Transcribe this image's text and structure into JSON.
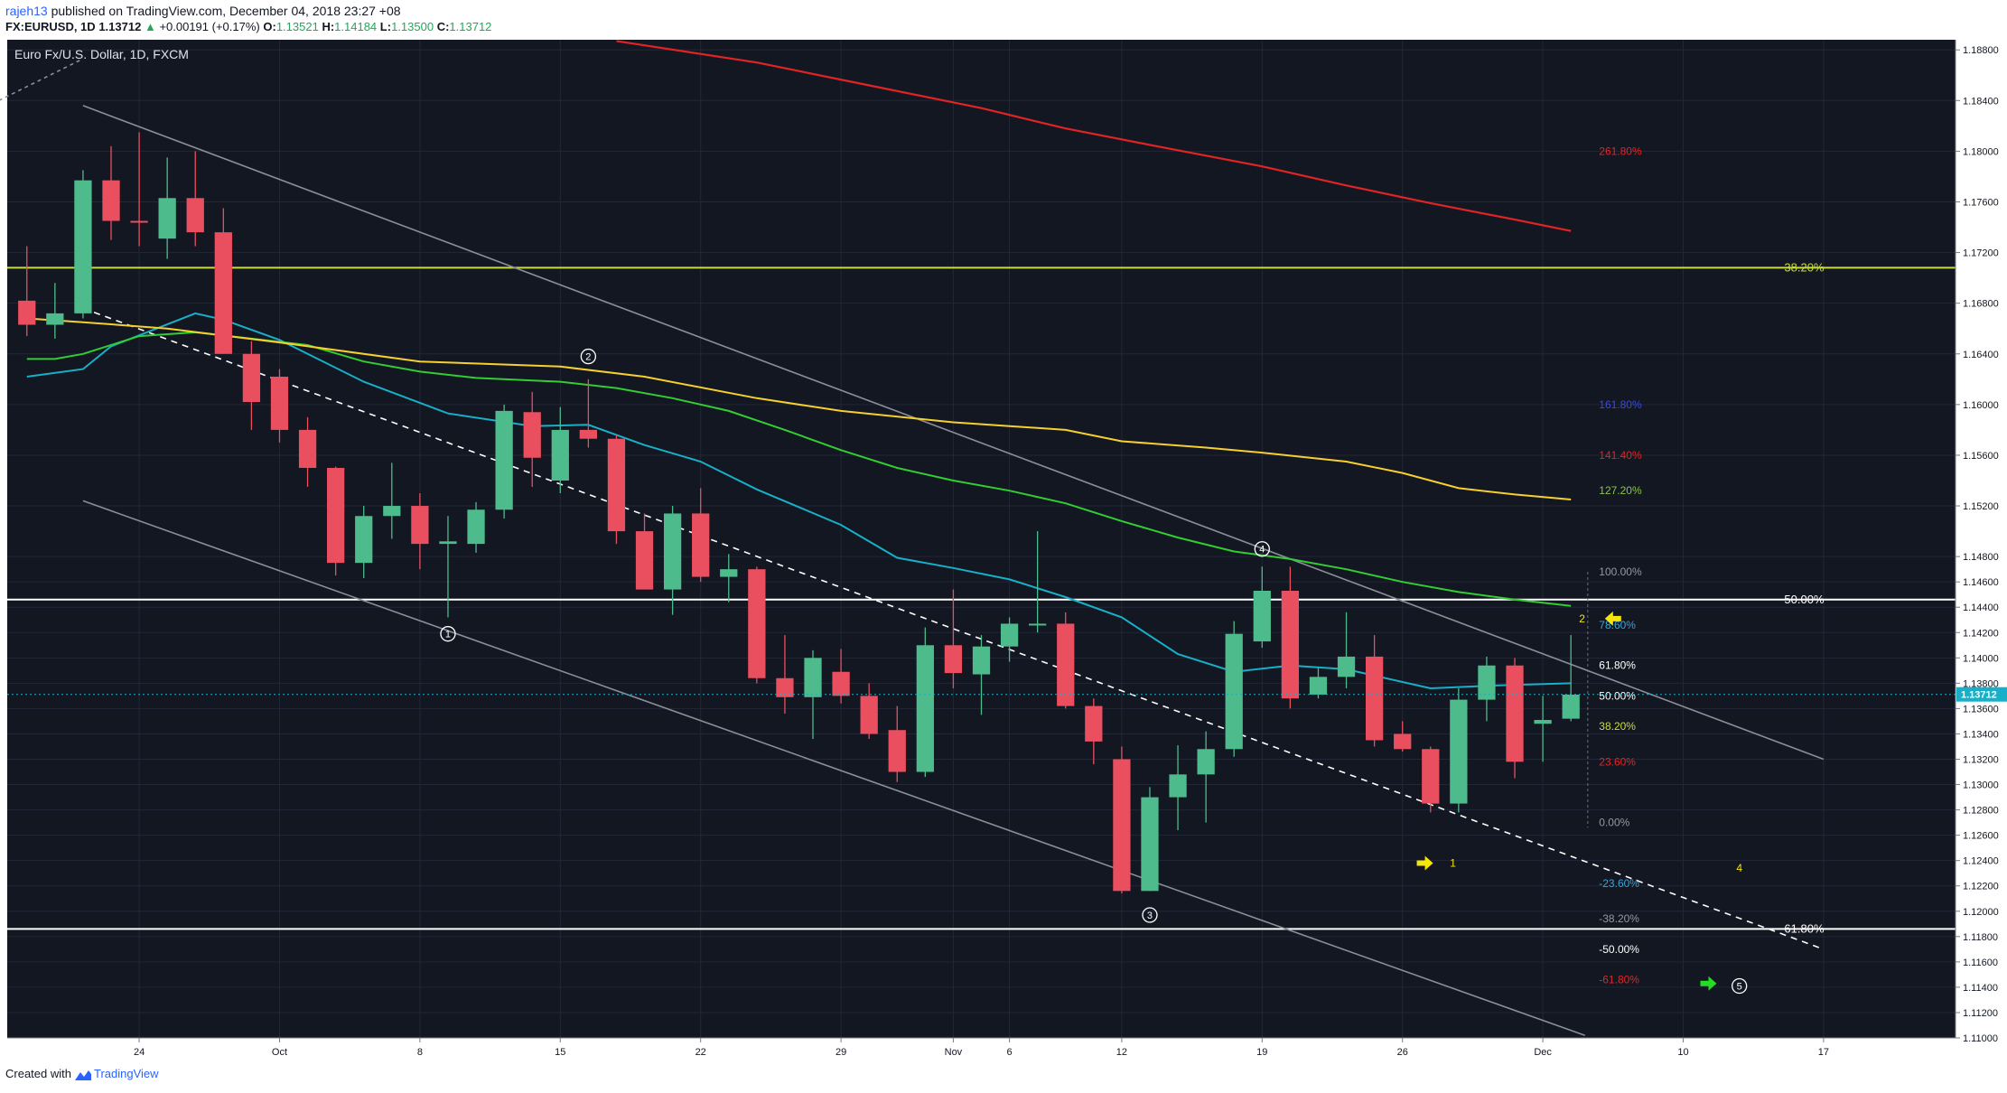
{
  "header": {
    "user": "rajeh13",
    "published_text": "published on TradingView.com, December 04, 2018 23:27 +08",
    "symbol": "FX:EURUSD, 1D",
    "last": "1.13712",
    "change_arrow": "▲",
    "change": "+0.00191 (+0.17%)",
    "o_label": "O:",
    "o_value": "1.13521",
    "h_label": "H:",
    "h_value": "1.14184",
    "l_label": "L:",
    "l_value": "1.13500",
    "c_label": "C:",
    "c_value": "1.13712"
  },
  "footer": {
    "created_with": "Created with",
    "brand": "TradingView"
  },
  "chart_data": {
    "type": "candlestick",
    "title": "Euro Fx/U.S. Dollar, 1D, FXCM",
    "ylim": [
      1.11,
      1.1888
    ],
    "xlim": [
      -4.7,
      64.7
    ],
    "y_ticks": [
      "1.11000",
      "1.11200",
      "1.11400",
      "1.11600",
      "1.11800",
      "1.12000",
      "1.12200",
      "1.12400",
      "1.12600",
      "1.12800",
      "1.13000",
      "1.13200",
      "1.13400",
      "1.13600",
      "1.13800",
      "1.14000",
      "1.14200",
      "1.14400",
      "1.14600",
      "1.14800",
      "1.15200",
      "1.15600",
      "1.16000",
      "1.16400",
      "1.16800",
      "1.17200",
      "1.17600",
      "1.18000",
      "1.18400",
      "1.18800"
    ],
    "x_ticks": [
      {
        "label": "24",
        "x": 0
      },
      {
        "label": "Oct",
        "x": 5
      },
      {
        "label": "8",
        "x": 10
      },
      {
        "label": "15",
        "x": 15
      },
      {
        "label": "22",
        "x": 20
      },
      {
        "label": "29",
        "x": 25
      },
      {
        "label": "Nov",
        "x": 29
      },
      {
        "label": "6",
        "x": 31
      },
      {
        "label": "12",
        "x": 35
      },
      {
        "label": "19",
        "x": 40
      },
      {
        "label": "26",
        "x": 45
      },
      {
        "label": "Dec",
        "x": 50
      },
      {
        "label": "10",
        "x": 55
      },
      {
        "label": "17",
        "x": 60
      }
    ],
    "last_price": "1.13712",
    "candles": [
      {
        "t": -4,
        "o": 1.1682,
        "h": 1.1725,
        "l": 1.1654,
        "c": 1.1663
      },
      {
        "t": -3,
        "o": 1.1663,
        "h": 1.1696,
        "l": 1.1652,
        "c": 1.1672
      },
      {
        "t": -2,
        "o": 1.1672,
        "h": 1.1785,
        "l": 1.1668,
        "c": 1.1777
      },
      {
        "t": -1,
        "o": 1.1777,
        "h": 1.1804,
        "l": 1.173,
        "c": 1.1745
      },
      {
        "t": 0,
        "o": 1.1745,
        "h": 1.1815,
        "l": 1.1725,
        "c": 1.1744
      },
      {
        "t": 1,
        "o": 1.1731,
        "h": 1.1795,
        "l": 1.1715,
        "c": 1.1763
      },
      {
        "t": 2,
        "o": 1.1763,
        "h": 1.18,
        "l": 1.1725,
        "c": 1.1736
      },
      {
        "t": 3,
        "o": 1.1736,
        "h": 1.1755,
        "l": 1.164,
        "c": 1.164
      },
      {
        "t": 4,
        "o": 1.164,
        "h": 1.165,
        "l": 1.158,
        "c": 1.1602
      },
      {
        "t": 5,
        "o": 1.1622,
        "h": 1.1628,
        "l": 1.157,
        "c": 1.158
      },
      {
        "t": 6,
        "o": 1.158,
        "h": 1.159,
        "l": 1.1535,
        "c": 1.155
      },
      {
        "t": 7,
        "o": 1.155,
        "h": 1.1551,
        "l": 1.1465,
        "c": 1.1475
      },
      {
        "t": 8,
        "o": 1.1475,
        "h": 1.152,
        "l": 1.1463,
        "c": 1.1512
      },
      {
        "t": 9,
        "o": 1.1512,
        "h": 1.1554,
        "l": 1.1494,
        "c": 1.152
      },
      {
        "t": 10,
        "o": 1.152,
        "h": 1.153,
        "l": 1.147,
        "c": 1.149
      },
      {
        "t": 11,
        "o": 1.149,
        "h": 1.1512,
        "l": 1.1432,
        "c": 1.1492
      },
      {
        "t": 12,
        "o": 1.149,
        "h": 1.1523,
        "l": 1.1483,
        "c": 1.1517
      },
      {
        "t": 13,
        "o": 1.1517,
        "h": 1.16,
        "l": 1.151,
        "c": 1.1595
      },
      {
        "t": 14,
        "o": 1.1594,
        "h": 1.161,
        "l": 1.1535,
        "c": 1.1558
      },
      {
        "t": 15,
        "o": 1.154,
        "h": 1.1598,
        "l": 1.153,
        "c": 1.158
      },
      {
        "t": 16,
        "o": 1.158,
        "h": 1.162,
        "l": 1.1566,
        "c": 1.1573
      },
      {
        "t": 17,
        "o": 1.1573,
        "h": 1.1576,
        "l": 1.149,
        "c": 1.15
      },
      {
        "t": 18,
        "o": 1.15,
        "h": 1.1514,
        "l": 1.1454,
        "c": 1.1454
      },
      {
        "t": 19,
        "o": 1.1454,
        "h": 1.152,
        "l": 1.1434,
        "c": 1.1514
      },
      {
        "t": 20,
        "o": 1.1514,
        "h": 1.1534,
        "l": 1.146,
        "c": 1.1464
      },
      {
        "t": 21,
        "o": 1.1464,
        "h": 1.1482,
        "l": 1.1444,
        "c": 1.147
      },
      {
        "t": 22,
        "o": 1.147,
        "h": 1.1472,
        "l": 1.138,
        "c": 1.1384
      },
      {
        "t": 23,
        "o": 1.1384,
        "h": 1.1418,
        "l": 1.1356,
        "c": 1.1369
      },
      {
        "t": 24,
        "o": 1.1369,
        "h": 1.1406,
        "l": 1.1336,
        "c": 1.14
      },
      {
        "t": 25,
        "o": 1.1389,
        "h": 1.1407,
        "l": 1.1364,
        "c": 1.137
      },
      {
        "t": 26,
        "o": 1.137,
        "h": 1.138,
        "l": 1.1336,
        "c": 1.134
      },
      {
        "t": 27,
        "o": 1.1343,
        "h": 1.1362,
        "l": 1.1302,
        "c": 1.131
      },
      {
        "t": 28,
        "o": 1.131,
        "h": 1.1424,
        "l": 1.1306,
        "c": 1.141
      },
      {
        "t": 29,
        "o": 1.141,
        "h": 1.1454,
        "l": 1.1376,
        "c": 1.1388
      },
      {
        "t": 30,
        "o": 1.1387,
        "h": 1.1418,
        "l": 1.1355,
        "c": 1.1409
      },
      {
        "t": 31,
        "o": 1.1409,
        "h": 1.1432,
        "l": 1.1397,
        "c": 1.1427
      },
      {
        "t": 32,
        "o": 1.1427,
        "h": 1.15,
        "l": 1.142,
        "c": 1.1427
      },
      {
        "t": 33,
        "o": 1.1427,
        "h": 1.1436,
        "l": 1.136,
        "c": 1.1362
      },
      {
        "t": 34,
        "o": 1.1362,
        "h": 1.1368,
        "l": 1.1316,
        "c": 1.1334
      },
      {
        "t": 35,
        "o": 1.132,
        "h": 1.133,
        "l": 1.1214,
        "c": 1.1216
      },
      {
        "t": 36,
        "o": 1.1216,
        "h": 1.1298,
        "l": 1.1216,
        "c": 1.129
      },
      {
        "t": 37,
        "o": 1.129,
        "h": 1.1331,
        "l": 1.1264,
        "c": 1.1308
      },
      {
        "t": 38,
        "o": 1.1308,
        "h": 1.1342,
        "l": 1.127,
        "c": 1.1328
      },
      {
        "t": 39,
        "o": 1.1328,
        "h": 1.1429,
        "l": 1.1322,
        "c": 1.1419
      },
      {
        "t": 40,
        "o": 1.1413,
        "h": 1.1472,
        "l": 1.1408,
        "c": 1.1453
      },
      {
        "t": 41,
        "o": 1.1453,
        "h": 1.1472,
        "l": 1.136,
        "c": 1.1368
      },
      {
        "t": 42,
        "o": 1.1371,
        "h": 1.1392,
        "l": 1.1368,
        "c": 1.1385
      },
      {
        "t": 43,
        "o": 1.1385,
        "h": 1.1436,
        "l": 1.1376,
        "c": 1.1401
      },
      {
        "t": 44,
        "o": 1.1401,
        "h": 1.1418,
        "l": 1.133,
        "c": 1.1335
      },
      {
        "t": 45,
        "o": 1.134,
        "h": 1.135,
        "l": 1.1326,
        "c": 1.1328
      },
      {
        "t": 46,
        "o": 1.1328,
        "h": 1.133,
        "l": 1.1278,
        "c": 1.1285
      },
      {
        "t": 47,
        "o": 1.1285,
        "h": 1.1376,
        "l": 1.1278,
        "c": 1.1367
      },
      {
        "t": 48,
        "o": 1.1367,
        "h": 1.1401,
        "l": 1.135,
        "c": 1.1394
      },
      {
        "t": 49,
        "o": 1.1394,
        "h": 1.14,
        "l": 1.1305,
        "c": 1.1318
      },
      {
        "t": 50,
        "o": 1.1348,
        "h": 1.137,
        "l": 1.1318,
        "c": 1.1351
      },
      {
        "t": 51,
        "o": 1.1352,
        "h": 1.1418,
        "l": 1.135,
        "c": 1.1371
      }
    ],
    "series": [
      {
        "name": "MA fast",
        "color": "#17b0c8",
        "points": [
          [
            -4,
            1.1622
          ],
          [
            -2,
            1.1628
          ],
          [
            -1,
            1.1646
          ],
          [
            2,
            1.1672
          ],
          [
            3,
            1.1667
          ],
          [
            5,
            1.1651
          ],
          [
            8,
            1.1618
          ],
          [
            11,
            1.1593
          ],
          [
            14,
            1.1583
          ],
          [
            16,
            1.1584
          ],
          [
            18,
            1.1568
          ],
          [
            20,
            1.1555
          ],
          [
            22,
            1.1533
          ],
          [
            25,
            1.1505
          ],
          [
            27,
            1.1479
          ],
          [
            29,
            1.1471
          ],
          [
            31,
            1.1462
          ],
          [
            33,
            1.1448
          ],
          [
            35,
            1.1432
          ],
          [
            37,
            1.1403
          ],
          [
            39,
            1.1389
          ],
          [
            41,
            1.1394
          ],
          [
            43,
            1.1391
          ],
          [
            46,
            1.1376
          ],
          [
            48,
            1.1378
          ],
          [
            51,
            1.138
          ]
        ]
      },
      {
        "name": "MA mid",
        "color": "#32cd32",
        "points": [
          [
            -4,
            1.1636
          ],
          [
            -3,
            1.1636
          ],
          [
            -2,
            1.164
          ],
          [
            0,
            1.1654
          ],
          [
            2,
            1.1657
          ],
          [
            4,
            1.1652
          ],
          [
            6,
            1.1647
          ],
          [
            8,
            1.1634
          ],
          [
            10,
            1.1626
          ],
          [
            12,
            1.1621
          ],
          [
            15,
            1.1618
          ],
          [
            17,
            1.1613
          ],
          [
            19,
            1.1605
          ],
          [
            21,
            1.1595
          ],
          [
            23,
            1.158
          ],
          [
            25,
            1.1564
          ],
          [
            27,
            1.155
          ],
          [
            29,
            1.154
          ],
          [
            31,
            1.1532
          ],
          [
            33,
            1.1522
          ],
          [
            35,
            1.1508
          ],
          [
            37,
            1.1495
          ],
          [
            39,
            1.1484
          ],
          [
            41,
            1.1478
          ],
          [
            43,
            1.147
          ],
          [
            45,
            1.146
          ],
          [
            47,
            1.1452
          ],
          [
            49,
            1.1446
          ],
          [
            51,
            1.1441
          ]
        ]
      },
      {
        "name": "MA slow",
        "color": "#f5d02e",
        "points": [
          [
            -4,
            1.1668
          ],
          [
            -2,
            1.1665
          ],
          [
            1,
            1.166
          ],
          [
            5,
            1.1649
          ],
          [
            10,
            1.1634
          ],
          [
            15,
            1.163
          ],
          [
            18,
            1.1622
          ],
          [
            22,
            1.1605
          ],
          [
            25,
            1.1595
          ],
          [
            29,
            1.1586
          ],
          [
            31,
            1.1583
          ],
          [
            33,
            1.158
          ],
          [
            35,
            1.1571
          ],
          [
            38,
            1.1566
          ],
          [
            40,
            1.1562
          ],
          [
            43,
            1.1555
          ],
          [
            45,
            1.1546
          ],
          [
            47,
            1.1534
          ],
          [
            49,
            1.1529
          ],
          [
            51,
            1.1525
          ]
        ]
      },
      {
        "name": "MA long",
        "color": "#e02424",
        "points": [
          [
            17,
            1.1887
          ],
          [
            22,
            1.187
          ],
          [
            26,
            1.1852
          ],
          [
            30,
            1.1834
          ],
          [
            33,
            1.1818
          ],
          [
            36,
            1.1805
          ],
          [
            40,
            1.1788
          ],
          [
            43,
            1.1773
          ],
          [
            46,
            1.1759
          ],
          [
            49,
            1.1746
          ],
          [
            51,
            1.1737
          ]
        ]
      }
    ],
    "horizontal_lines": [
      {
        "name": "upper-fib-line",
        "y": 1.1708,
        "color": "#c8dc3c",
        "label": "38.20%",
        "label_color": "#c8dc3c"
      },
      {
        "name": "mid-fib-line",
        "y": 1.1446,
        "color": "#ffffff",
        "label": "50.00%",
        "label_color": "#ffffff"
      },
      {
        "name": "lower-fib-line",
        "y": 1.1186,
        "color": "#ffffff",
        "label": "61.80%",
        "label_color": "#ffffff"
      }
    ],
    "trend_lines": [
      {
        "name": "channel-upper-line",
        "from": [
          -2,
          1.1836
        ],
        "to": [
          60,
          1.132
        ],
        "color": "#8a8e99",
        "dash": "none"
      },
      {
        "name": "channel-lower-line",
        "from": [
          -2,
          1.1524
        ],
        "to": [
          51.5,
          1.1102
        ],
        "color": "#8a8e99",
        "dash": "none"
      },
      {
        "name": "dashed-trend-line",
        "from": [
          -2,
          1.1676
        ],
        "to": [
          60,
          1.117
        ],
        "color": "#ffffff",
        "dash": "7,6"
      },
      {
        "name": "corner-trend-line",
        "from": [
          -5,
          1.184
        ],
        "to": [
          -2,
          1.1873
        ],
        "color": "#8a8e99",
        "dash": "4,4"
      }
    ],
    "fib_levels": [
      {
        "label": "261.80%",
        "y": 1.18,
        "color": "#e02424"
      },
      {
        "label": "161.80%",
        "y": 1.16,
        "color": "#3a4bd8"
      },
      {
        "label": "141.40%",
        "y": 1.156,
        "color": "#e02424"
      },
      {
        "label": "127.20%",
        "y": 1.1532,
        "color": "#8bc34a"
      },
      {
        "label": "100.00%",
        "y": 1.1468,
        "color": "#9598a1"
      },
      {
        "label": "78.60%",
        "y": 1.1426,
        "color": "#3aa3d8"
      },
      {
        "label": "61.80%",
        "y": 1.1394,
        "color": "#ffffff"
      },
      {
        "label": "50.00%",
        "y": 1.137,
        "color": "#ffffff"
      },
      {
        "label": "38.20%",
        "y": 1.1346,
        "color": "#c8dc3c"
      },
      {
        "label": "23.60%",
        "y": 1.1318,
        "color": "#e02424"
      },
      {
        "label": "0.00%",
        "y": 1.127,
        "color": "#9598a1"
      },
      {
        "label": "-23.60%",
        "y": 1.1222,
        "color": "#3aa3d8"
      },
      {
        "label": "-38.20%",
        "y": 1.1194,
        "color": "#9598a1"
      },
      {
        "label": "-50.00%",
        "y": 1.117,
        "color": "#ffffff"
      },
      {
        "label": "-61.80%",
        "y": 1.1146,
        "color": "#e02424"
      }
    ],
    "wave_labels": [
      {
        "label": "1",
        "x": 11,
        "y": 1.1419
      },
      {
        "label": "2",
        "x": 16,
        "y": 1.1638
      },
      {
        "label": "3",
        "x": 36,
        "y": 1.1197
      },
      {
        "label": "4",
        "x": 40,
        "y": 1.1486
      },
      {
        "label": "5",
        "x": 57,
        "y": 1.1141
      }
    ],
    "markers": [
      {
        "name": "arrow-1",
        "type": "arrow-right",
        "x": 45.8,
        "y": 1.1238,
        "color": "#f5e50b",
        "text": "1",
        "text_x": 46.8
      },
      {
        "name": "arrow-2",
        "type": "arrow-left",
        "x": 52.5,
        "y": 1.1431,
        "color": "#f5e50b",
        "text": "2",
        "text_x": 51.4
      },
      {
        "name": "arrow-5",
        "type": "arrow-right",
        "x": 55.9,
        "y": 1.1143,
        "color": "#22dd22",
        "text": "",
        "text_x": 0
      }
    ],
    "free_labels": [
      {
        "text": "4",
        "x": 57,
        "y": 1.1234,
        "color": "#f5e50b"
      }
    ],
    "colors": {
      "up": "#4dbb8b",
      "down": "#ea4f60",
      "background": "#131722",
      "grid": "#232737",
      "axis_text": "#131722",
      "last_price_bg": "#17b0c8"
    }
  }
}
